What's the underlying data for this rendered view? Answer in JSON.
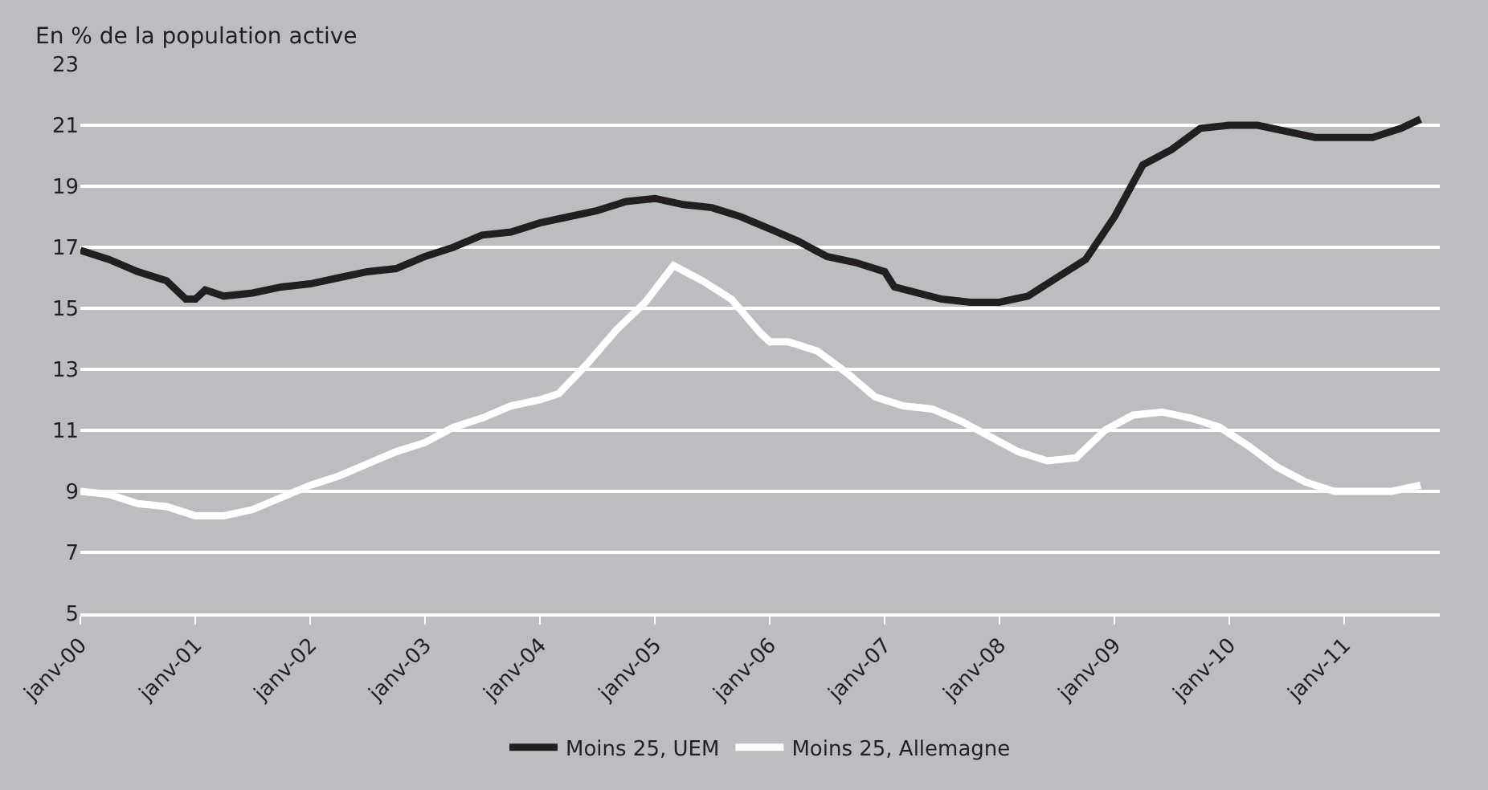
{
  "chart_data": {
    "type": "line",
    "ylabel": "En % de la population active",
    "ylim": [
      5,
      23
    ],
    "yticks": [
      5,
      7,
      9,
      11,
      13,
      15,
      17,
      19,
      21,
      23
    ],
    "xlim": [
      "2000-01",
      "2011-11"
    ],
    "xticks": [
      {
        "value": "2000-01",
        "label": "janv-00"
      },
      {
        "value": "2001-01",
        "label": "janv-01"
      },
      {
        "value": "2002-01",
        "label": "janv-02"
      },
      {
        "value": "2003-01",
        "label": "janv-03"
      },
      {
        "value": "2004-01",
        "label": "janv-04"
      },
      {
        "value": "2005-01",
        "label": "janv-05"
      },
      {
        "value": "2006-01",
        "label": "janv-06"
      },
      {
        "value": "2007-01",
        "label": "janv-07"
      },
      {
        "value": "2008-01",
        "label": "janv-08"
      },
      {
        "value": "2009-01",
        "label": "janv-09"
      },
      {
        "value": "2010-01",
        "label": "janv-10"
      },
      {
        "value": "2011-01",
        "label": "janv-11"
      }
    ],
    "grid": "y",
    "legend": "bottom",
    "marker": "none",
    "line_style": "solid",
    "series": [
      {
        "name": "Moins 25, UEM",
        "color": "#231f20",
        "x": [
          "2000-01",
          "2000-04",
          "2000-07",
          "2000-10",
          "2000-12",
          "2001-01",
          "2001-02",
          "2001-04",
          "2001-07",
          "2001-10",
          "2002-01",
          "2002-04",
          "2002-07",
          "2002-10",
          "2003-01",
          "2003-04",
          "2003-07",
          "2003-10",
          "2004-01",
          "2004-04",
          "2004-07",
          "2004-10",
          "2005-01",
          "2005-04",
          "2005-07",
          "2005-10",
          "2006-01",
          "2006-04",
          "2006-07",
          "2006-10",
          "2007-01",
          "2007-02",
          "2007-07",
          "2007-10",
          "2008-01",
          "2008-04",
          "2008-07",
          "2008-10",
          "2009-01",
          "2009-04",
          "2009-07",
          "2009-10",
          "2010-01",
          "2010-04",
          "2010-07",
          "2010-10",
          "2011-01",
          "2011-04",
          "2011-07",
          "2011-09"
        ],
        "values": [
          16.9,
          16.6,
          16.2,
          15.9,
          15.3,
          15.3,
          15.6,
          15.4,
          15.5,
          15.7,
          15.8,
          16.0,
          16.2,
          16.3,
          16.7,
          17.0,
          17.4,
          17.5,
          17.8,
          18.0,
          18.2,
          18.5,
          18.6,
          18.4,
          18.3,
          18.0,
          17.6,
          17.2,
          16.7,
          16.5,
          16.2,
          15.7,
          15.3,
          15.2,
          15.2,
          15.4,
          16.0,
          16.6,
          18.0,
          19.7,
          20.2,
          20.9,
          21.0,
          21.0,
          20.8,
          20.6,
          20.6,
          20.6,
          20.9,
          21.2
        ]
      },
      {
        "name": "Moins 25, Allemagne",
        "color": "#ffffff",
        "x": [
          "2000-01",
          "2000-04",
          "2000-07",
          "2000-10",
          "2001-01",
          "2001-04",
          "2001-07",
          "2001-10",
          "2002-01",
          "2002-04",
          "2002-07",
          "2002-10",
          "2003-01",
          "2003-04",
          "2003-07",
          "2003-10",
          "2004-01",
          "2004-03",
          "2004-06",
          "2004-09",
          "2004-12",
          "2005-03",
          "2005-06",
          "2005-09",
          "2005-12",
          "2006-01",
          "2006-03",
          "2006-06",
          "2006-09",
          "2006-12",
          "2007-03",
          "2007-06",
          "2007-09",
          "2007-12",
          "2008-03",
          "2008-06",
          "2008-09",
          "2008-12",
          "2009-03",
          "2009-06",
          "2009-09",
          "2009-12",
          "2010-03",
          "2010-06",
          "2010-09",
          "2010-12",
          "2011-03",
          "2011-06",
          "2011-09"
        ],
        "values": [
          9.0,
          8.9,
          8.6,
          8.5,
          8.2,
          8.2,
          8.4,
          8.8,
          9.2,
          9.5,
          9.9,
          10.3,
          10.6,
          11.1,
          11.4,
          11.8,
          12.0,
          12.2,
          13.2,
          14.3,
          15.2,
          16.4,
          15.9,
          15.3,
          14.2,
          13.9,
          13.9,
          13.6,
          12.9,
          12.1,
          11.8,
          11.7,
          11.3,
          10.8,
          10.3,
          10.0,
          10.1,
          11.0,
          11.5,
          11.6,
          11.4,
          11.1,
          10.5,
          9.8,
          9.3,
          9.0,
          9.0,
          9.0,
          9.2
        ]
      }
    ]
  }
}
